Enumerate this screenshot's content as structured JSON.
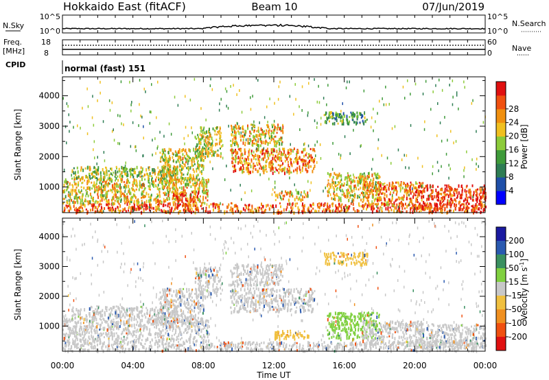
{
  "header": {
    "radar": "Hokkaido East (fitACF)",
    "beam": "Beam 10",
    "date": "07/Jun/2019"
  },
  "noise_panel": {
    "left_label": "N.Sky",
    "right_label": "N.Search",
    "ticks": [
      "10^5",
      "10^0"
    ]
  },
  "freq_panel": {
    "left_label": "Freq.",
    "left_unit": "[MHz]",
    "left_ticks": [
      "18",
      "8"
    ],
    "right_label": "Nave",
    "right_ticks": [
      "60",
      "0"
    ]
  },
  "cpid_panel": {
    "label": "CPID",
    "program": "normal (fast) 151"
  },
  "chart_data": [
    {
      "type": "heatmap",
      "quantity": "power",
      "ylabel": "Slant Range [km]",
      "ylim": [
        180,
        4600
      ],
      "yticks": [
        1000,
        2000,
        3000,
        4000
      ],
      "colorbar": {
        "label": "Power [dB]",
        "range": [
          0,
          32
        ],
        "ticks": [
          "4",
          "8",
          "12",
          "16",
          "20",
          "24",
          "28"
        ],
        "colors": [
          "#0000ff",
          "#1f4fa8",
          "#2e7d54",
          "#3f9b3a",
          "#8ccb3a",
          "#f0c020",
          "#f09010",
          "#f05010",
          "#e01010"
        ]
      },
      "regions": [
        {
          "t0": 0.0,
          "t1": 24.0,
          "r0": 200,
          "r1": 500,
          "level": 26
        },
        {
          "t0": 0.0,
          "t1": 8.3,
          "r0": 500,
          "r1": 1300,
          "level": 20
        },
        {
          "t0": 0.5,
          "t1": 6.5,
          "r0": 1300,
          "r1": 1700,
          "level": 16
        },
        {
          "t0": 5.5,
          "t1": 8.0,
          "r0": 1100,
          "r1": 2300,
          "level": 18
        },
        {
          "t0": 6.2,
          "t1": 7.8,
          "r0": 400,
          "r1": 900,
          "level": 26
        },
        {
          "t0": 7.5,
          "t1": 9.0,
          "r0": 2000,
          "r1": 3000,
          "level": 18
        },
        {
          "t0": 9.5,
          "t1": 14.3,
          "r0": 1500,
          "r1": 2300,
          "level": 24
        },
        {
          "t0": 9.5,
          "t1": 12.5,
          "r0": 2400,
          "r1": 3100,
          "level": 20
        },
        {
          "t0": 12.0,
          "t1": 14.0,
          "r0": 600,
          "r1": 900,
          "level": 20
        },
        {
          "t0": 14.8,
          "t1": 17.3,
          "r0": 3100,
          "r1": 3500,
          "level": 12
        },
        {
          "t0": 15.0,
          "t1": 18.0,
          "r0": 600,
          "r1": 1500,
          "level": 20
        },
        {
          "t0": 17.0,
          "t1": 20.5,
          "r0": 400,
          "r1": 1200,
          "level": 24
        },
        {
          "t0": 20.0,
          "t1": 24.0,
          "r0": 300,
          "r1": 1100,
          "level": 28
        }
      ]
    },
    {
      "type": "heatmap",
      "quantity": "velocity",
      "ylabel": "Slant Range [km]",
      "xlabel": "Time UT",
      "ylim": [
        180,
        4600
      ],
      "yticks": [
        1000,
        2000,
        3000,
        4000
      ],
      "xlim": [
        0,
        24
      ],
      "xticks": [
        "00:00",
        "04:00",
        "08:00",
        "12:00",
        "16:00",
        "20:00",
        "00:00"
      ],
      "colorbar": {
        "label": "Velocity [m s",
        "label_sup": "-1",
        "label_close": "]",
        "ticks": [
          "200",
          "100",
          "50",
          "15",
          "-15",
          "-50",
          "-100",
          "-200"
        ],
        "colors": [
          "#1a1aa0",
          "#2a5ab0",
          "#3a9060",
          "#80d040",
          "#c8c8c8",
          "#f0c040",
          "#f09020",
          "#f05010",
          "#e01010"
        ]
      },
      "regions": [
        {
          "t0": 0.0,
          "t1": 24.0,
          "r0": 200,
          "r1": 500,
          "vel": 0
        },
        {
          "t0": 0.0,
          "t1": 8.3,
          "r0": 500,
          "r1": 1300,
          "vel": 0
        },
        {
          "t0": 0.5,
          "t1": 6.5,
          "r0": 1300,
          "r1": 1700,
          "vel": 0
        },
        {
          "t0": 5.5,
          "t1": 8.0,
          "r0": 1100,
          "r1": 2300,
          "vel": 0
        },
        {
          "t0": 7.5,
          "t1": 9.0,
          "r0": 2000,
          "r1": 3000,
          "vel": 0
        },
        {
          "t0": 9.5,
          "t1": 14.3,
          "r0": 1500,
          "r1": 2300,
          "vel": 0
        },
        {
          "t0": 9.5,
          "t1": 12.5,
          "r0": 2400,
          "r1": 3100,
          "vel": 0
        },
        {
          "t0": 12.0,
          "t1": 14.0,
          "r0": 600,
          "r1": 900,
          "vel": -30
        },
        {
          "t0": 14.8,
          "t1": 17.3,
          "r0": 3100,
          "r1": 3500,
          "vel": -30
        },
        {
          "t0": 15.0,
          "t1": 18.0,
          "r0": 600,
          "r1": 1500,
          "vel": 30
        },
        {
          "t0": 17.0,
          "t1": 20.5,
          "r0": 400,
          "r1": 1200,
          "vel": 0
        },
        {
          "t0": 20.0,
          "t1": 24.0,
          "r0": 300,
          "r1": 1100,
          "vel": 0
        }
      ]
    }
  ]
}
